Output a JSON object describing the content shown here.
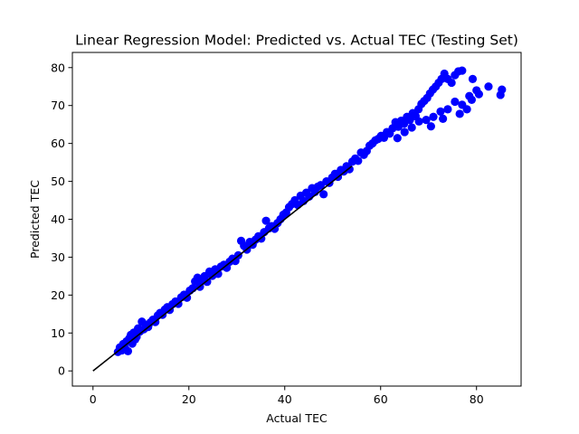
{
  "chart_data": {
    "type": "scatter",
    "title": "Linear Regression Model: Predicted vs. Actual TEC (Testing Set)",
    "xlabel": "Actual TEC",
    "ylabel": "Predicted TEC",
    "xlim": [
      -4.3,
      89.3
    ],
    "ylim": [
      -4,
      84
    ],
    "xticks": [
      0,
      20,
      40,
      60,
      80
    ],
    "yticks": [
      0,
      10,
      20,
      30,
      40,
      50,
      60,
      70,
      80
    ],
    "grid": false,
    "legend": "none",
    "colors": {
      "points": "#0000ff",
      "line": "#000000"
    },
    "series": [
      {
        "kind": "scatter",
        "points": [
          [
            5.2,
            5.0
          ],
          [
            5.6,
            6.2
          ],
          [
            6.0,
            5.4
          ],
          [
            6.3,
            7.1
          ],
          [
            6.7,
            6.0
          ],
          [
            7.0,
            7.8
          ],
          [
            7.3,
            5.2
          ],
          [
            7.6,
            8.6
          ],
          [
            7.9,
            9.5
          ],
          [
            8.2,
            7.2
          ],
          [
            8.5,
            10.1
          ],
          [
            8.8,
            8.3
          ],
          [
            9.1,
            9.0
          ],
          [
            9.4,
            11.2
          ],
          [
            9.8,
            10.4
          ],
          [
            10.2,
            13.0
          ],
          [
            10.6,
            11.0
          ],
          [
            11.0,
            12.2
          ],
          [
            11.5,
            11.6
          ],
          [
            12.0,
            12.8
          ],
          [
            12.5,
            13.5
          ],
          [
            13.0,
            12.9
          ],
          [
            13.5,
            14.6
          ],
          [
            14.0,
            15.3
          ],
          [
            14.5,
            14.8
          ],
          [
            15.0,
            16.2
          ],
          [
            15.5,
            16.8
          ],
          [
            16.0,
            16.1
          ],
          [
            16.6,
            17.6
          ],
          [
            17.2,
            18.3
          ],
          [
            17.8,
            17.7
          ],
          [
            18.4,
            19.4
          ],
          [
            19.0,
            20.1
          ],
          [
            19.6,
            19.3
          ],
          [
            20.2,
            21.2
          ],
          [
            20.8,
            21.8
          ],
          [
            21.3,
            23.6
          ],
          [
            21.8,
            24.6
          ],
          [
            22.3,
            22.2
          ],
          [
            22.8,
            23.8
          ],
          [
            23.3,
            25.0
          ],
          [
            23.8,
            23.5
          ],
          [
            24.3,
            26.2
          ],
          [
            24.9,
            25.1
          ],
          [
            25.5,
            26.8
          ],
          [
            26.1,
            25.6
          ],
          [
            26.7,
            27.5
          ],
          [
            27.3,
            28.0
          ],
          [
            27.9,
            27.2
          ],
          [
            28.5,
            28.8
          ],
          [
            29.1,
            29.6
          ],
          [
            29.7,
            29.0
          ],
          [
            30.3,
            30.5
          ],
          [
            30.9,
            34.3
          ],
          [
            31.5,
            33.0
          ],
          [
            32.1,
            32.0
          ],
          [
            32.7,
            34.0
          ],
          [
            33.3,
            33.3
          ],
          [
            33.9,
            34.6
          ],
          [
            34.5,
            35.5
          ],
          [
            35.1,
            34.9
          ],
          [
            35.7,
            36.6
          ],
          [
            36.1,
            39.6
          ],
          [
            36.7,
            37.6
          ],
          [
            37.3,
            38.2
          ],
          [
            37.9,
            37.5
          ],
          [
            38.5,
            39.0
          ],
          [
            39.1,
            40.0
          ],
          [
            39.7,
            41.2
          ],
          [
            40.3,
            41.8
          ],
          [
            40.9,
            43.2
          ],
          [
            41.5,
            44.0
          ],
          [
            42.1,
            45.0
          ],
          [
            42.7,
            43.8
          ],
          [
            43.3,
            46.2
          ],
          [
            43.9,
            44.8
          ],
          [
            44.5,
            47.0
          ],
          [
            45.1,
            46.0
          ],
          [
            45.7,
            48.2
          ],
          [
            46.3,
            47.2
          ],
          [
            46.9,
            48.6
          ],
          [
            47.5,
            49.0
          ],
          [
            48.1,
            46.6
          ],
          [
            48.7,
            50.0
          ],
          [
            49.3,
            49.6
          ],
          [
            49.9,
            51.0
          ],
          [
            50.5,
            52.0
          ],
          [
            51.1,
            51.2
          ],
          [
            51.7,
            53.0
          ],
          [
            52.3,
            52.6
          ],
          [
            52.9,
            54.0
          ],
          [
            53.5,
            53.2
          ],
          [
            54.1,
            55.2
          ],
          [
            54.7,
            56.0
          ],
          [
            55.3,
            55.4
          ],
          [
            55.9,
            57.6
          ],
          [
            56.5,
            57.0
          ],
          [
            57.1,
            58.0
          ],
          [
            57.7,
            59.4
          ],
          [
            58.3,
            60.0
          ],
          [
            58.9,
            60.8
          ],
          [
            59.5,
            61.2
          ],
          [
            60.1,
            62.0
          ],
          [
            60.7,
            61.5
          ],
          [
            61.3,
            63.0
          ],
          [
            61.9,
            62.6
          ],
          [
            62.5,
            64.0
          ],
          [
            63.1,
            65.6
          ],
          [
            63.7,
            64.4
          ],
          [
            64.3,
            66.0
          ],
          [
            64.9,
            65.2
          ],
          [
            65.5,
            67.0
          ],
          [
            66.1,
            66.2
          ],
          [
            66.7,
            68.0
          ],
          [
            67.3,
            67.2
          ],
          [
            67.9,
            69.0
          ],
          [
            68.5,
            70.4
          ],
          [
            69.1,
            71.2
          ],
          [
            69.7,
            72.0
          ],
          [
            70.3,
            73.2
          ],
          [
            70.9,
            74.2
          ],
          [
            71.5,
            75.0
          ],
          [
            72.1,
            76.0
          ],
          [
            72.7,
            77.0
          ],
          [
            73.3,
            78.4
          ],
          [
            74.0,
            77.0
          ],
          [
            74.8,
            76.0
          ],
          [
            75.5,
            78.0
          ],
          [
            76.2,
            79.0
          ],
          [
            77.0,
            79.2
          ],
          [
            63.5,
            61.4
          ],
          [
            65.0,
            63.0
          ],
          [
            66.5,
            64.2
          ],
          [
            68.0,
            65.8
          ],
          [
            69.5,
            66.2
          ],
          [
            71.0,
            67.0
          ],
          [
            72.5,
            68.4
          ],
          [
            74.0,
            69.0
          ],
          [
            75.5,
            71.0
          ],
          [
            77.0,
            70.2
          ],
          [
            78.0,
            69.0
          ],
          [
            79.0,
            71.5
          ],
          [
            80.0,
            74.0
          ],
          [
            79.2,
            77.0
          ],
          [
            80.5,
            73.0
          ],
          [
            82.5,
            75.0
          ],
          [
            85.0,
            72.8
          ],
          [
            85.3,
            74.2
          ],
          [
            70.5,
            64.5
          ],
          [
            73.0,
            66.5
          ],
          [
            76.5,
            67.8
          ],
          [
            78.5,
            72.5
          ]
        ]
      },
      {
        "kind": "line",
        "points": [
          [
            0.0,
            0.0
          ],
          [
            54.0,
            54.0
          ]
        ]
      }
    ]
  }
}
